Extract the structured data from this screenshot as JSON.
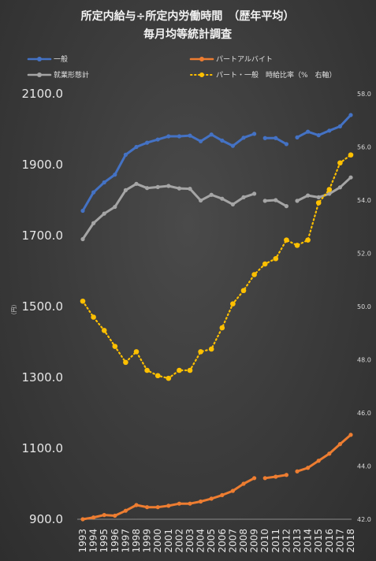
{
  "chart_data": {
    "type": "line",
    "title_line1": "所定内給与÷所定内労働時間　（歴年平均）",
    "title_line2": "毎月均等統計調査",
    "y_left_unit": "（円）",
    "y_left_ticks": [
      "2100.0",
      "1900.0",
      "1700.0",
      "1500.0",
      "1300.0",
      "1100.0",
      "900.0"
    ],
    "y_right_ticks": [
      "58.0",
      "56.0",
      "54.0",
      "52.0",
      "50.0",
      "48.0",
      "46.0",
      "44.0",
      "42.0"
    ],
    "ylim_left": [
      900,
      2100
    ],
    "ylim_right": [
      42,
      58
    ],
    "x_years": [
      "1993",
      "1994",
      "1995",
      "1996",
      "1997",
      "1998",
      "1999",
      "2000",
      "2001",
      "2002",
      "2003",
      "2004",
      "2005",
      "2006",
      "2007",
      "2008",
      "2009",
      "2010",
      "2011",
      "2012",
      "2013",
      "2014",
      "2015",
      "2016",
      "2017",
      "2018"
    ],
    "gaps_after": [
      "2009",
      "2012"
    ],
    "grid": false,
    "legend_position": "top",
    "series": [
      {
        "name": "一般",
        "axis": "left",
        "color": "#4472c4",
        "style": "solid",
        "values": [
          1770,
          1822,
          1850,
          1872,
          1928,
          1950,
          1962,
          1971,
          1980,
          1980,
          1982,
          1966,
          1985,
          1968,
          1953,
          1976,
          1987,
          1975,
          1975,
          1958,
          1977,
          1993,
          1983,
          1996,
          2008,
          2040
        ]
      },
      {
        "name": "パートアルバイト",
        "axis": "left",
        "color": "#ed7d31",
        "style": "solid",
        "values": [
          900,
          905,
          912,
          910,
          924,
          940,
          934,
          934,
          938,
          944,
          944,
          950,
          958,
          968,
          980,
          1000,
          1016,
          1016,
          1020,
          1025,
          1035,
          1045,
          1065,
          1085,
          1112,
          1138
        ]
      },
      {
        "name": "就業形態計",
        "axis": "left",
        "color": "#a5a5a5",
        "style": "solid",
        "values": [
          1690,
          1735,
          1762,
          1781,
          1828,
          1846,
          1834,
          1837,
          1840,
          1833,
          1832,
          1799,
          1815,
          1804,
          1788,
          1808,
          1818,
          1798,
          1800,
          1783,
          1798,
          1813,
          1808,
          1818,
          1836,
          1864
        ]
      },
      {
        "name": "パート・一般　時給比率（%　右軸）",
        "axis": "right",
        "color": "#ffc000",
        "style": "dotted",
        "values": [
          50.2,
          49.6,
          49.1,
          48.5,
          47.9,
          48.3,
          47.6,
          47.4,
          47.3,
          47.6,
          47.6,
          48.3,
          48.4,
          49.2,
          50.1,
          50.6,
          51.2,
          51.6,
          51.8,
          52.5,
          52.3,
          52.5,
          53.9,
          54.4,
          55.4,
          55.7
        ]
      }
    ]
  }
}
